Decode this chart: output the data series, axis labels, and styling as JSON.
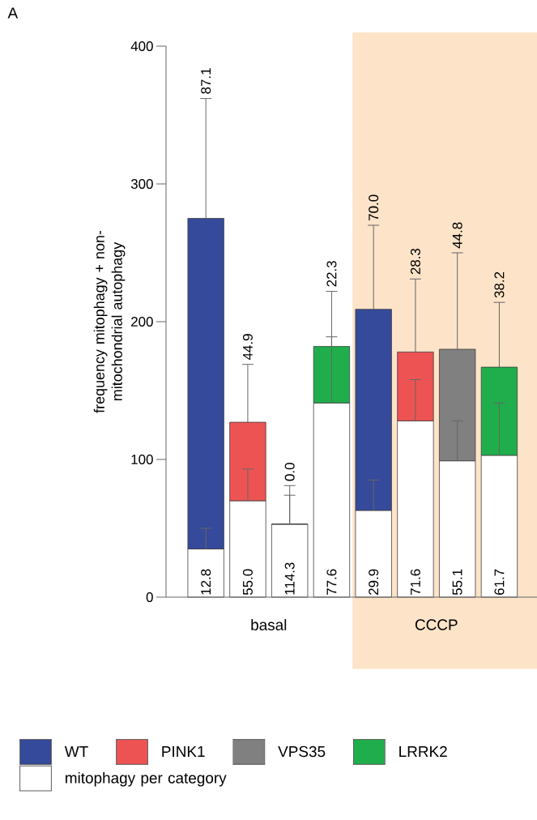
{
  "chart_data": {
    "type": "bar",
    "stacked": true,
    "categories": [
      null,
      null,
      null,
      null,
      null,
      null,
      null,
      null
    ],
    "ylabel": "frequency mitophagy + non-mitochondrial autophagy",
    "ylim": [
      0,
      400
    ],
    "yticks": [
      0,
      100,
      200,
      300,
      400
    ],
    "grid": false,
    "legend": "bottom",
    "series": [
      {
        "name": "mitophagy per category",
        "color": "#ffffff",
        "values": [
          35,
          70,
          53,
          141,
          63,
          128,
          99,
          103
        ],
        "errors": [
          [
            35,
            50
          ],
          [
            70,
            93
          ],
          [
            53,
            74
          ],
          [
            141,
            189
          ],
          [
            63,
            85
          ],
          [
            128,
            158
          ],
          [
            99,
            128
          ],
          [
            103,
            141
          ]
        ]
      },
      {
        "name": "WT",
        "color": "#354a9a",
        "values": [
          240,
          null,
          null,
          null,
          146,
          null,
          null,
          null
        ],
        "errors": [
          [
            275,
            362
          ],
          null,
          null,
          null,
          [
            209,
            270
          ],
          null,
          null,
          null
        ]
      },
      {
        "name": "PINK1",
        "color": "#ee5353",
        "values": [
          null,
          57,
          null,
          null,
          null,
          50,
          null,
          null
        ],
        "errors": [
          null,
          [
            127,
            169
          ],
          null,
          null,
          null,
          [
            178,
            231
          ],
          null,
          null
        ]
      },
      {
        "name": "VPS35",
        "color": "#808080",
        "values": [
          null,
          null,
          0,
          null,
          null,
          null,
          81,
          null
        ],
        "errors": [
          null,
          null,
          [
            53,
            81
          ],
          null,
          null,
          null,
          [
            180,
            250
          ],
          null
        ]
      },
      {
        "name": "LRRK2",
        "color": "#1fae4b",
        "values": [
          null,
          null,
          null,
          41,
          null,
          null,
          null,
          64
        ],
        "errors": [
          null,
          null,
          null,
          [
            182,
            222
          ],
          null,
          null,
          null,
          [
            167,
            214
          ]
        ]
      }
    ],
    "annotations": [
      "A",
      "basal",
      "CCCP",
      "12.8",
      "55.0",
      "114.3",
      "77.6",
      "29.9",
      "71.6",
      "55.1",
      "61.7",
      "87.1",
      "44.9",
      "0.0",
      "22.3",
      "70.0",
      "28.3",
      "44.8",
      "38.2"
    ]
  }
}
